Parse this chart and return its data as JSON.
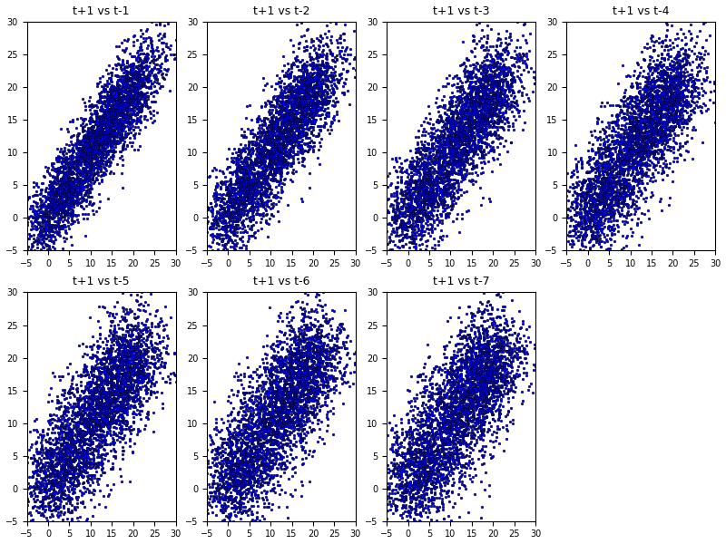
{
  "n_lags": 7,
  "n_points": 3650,
  "seed": 0,
  "x_min": -5,
  "x_max": 30,
  "y_min": -5,
  "y_max": 30,
  "dot_color": "blue",
  "dot_size": 4,
  "dot_alpha": 1.0,
  "background_color": "white",
  "nrows": 2,
  "ncols": 4,
  "figsize": [
    8.0,
    6.0
  ],
  "dpi": 100,
  "title_template": "t+1 vs t-{lag}",
  "title_fontsize": 9,
  "tick_fontsize": 7,
  "ar_coef": 0.85,
  "noise_std": 2.5,
  "seasonal_amp": 8.5,
  "seasonal_mean": 11.5
}
